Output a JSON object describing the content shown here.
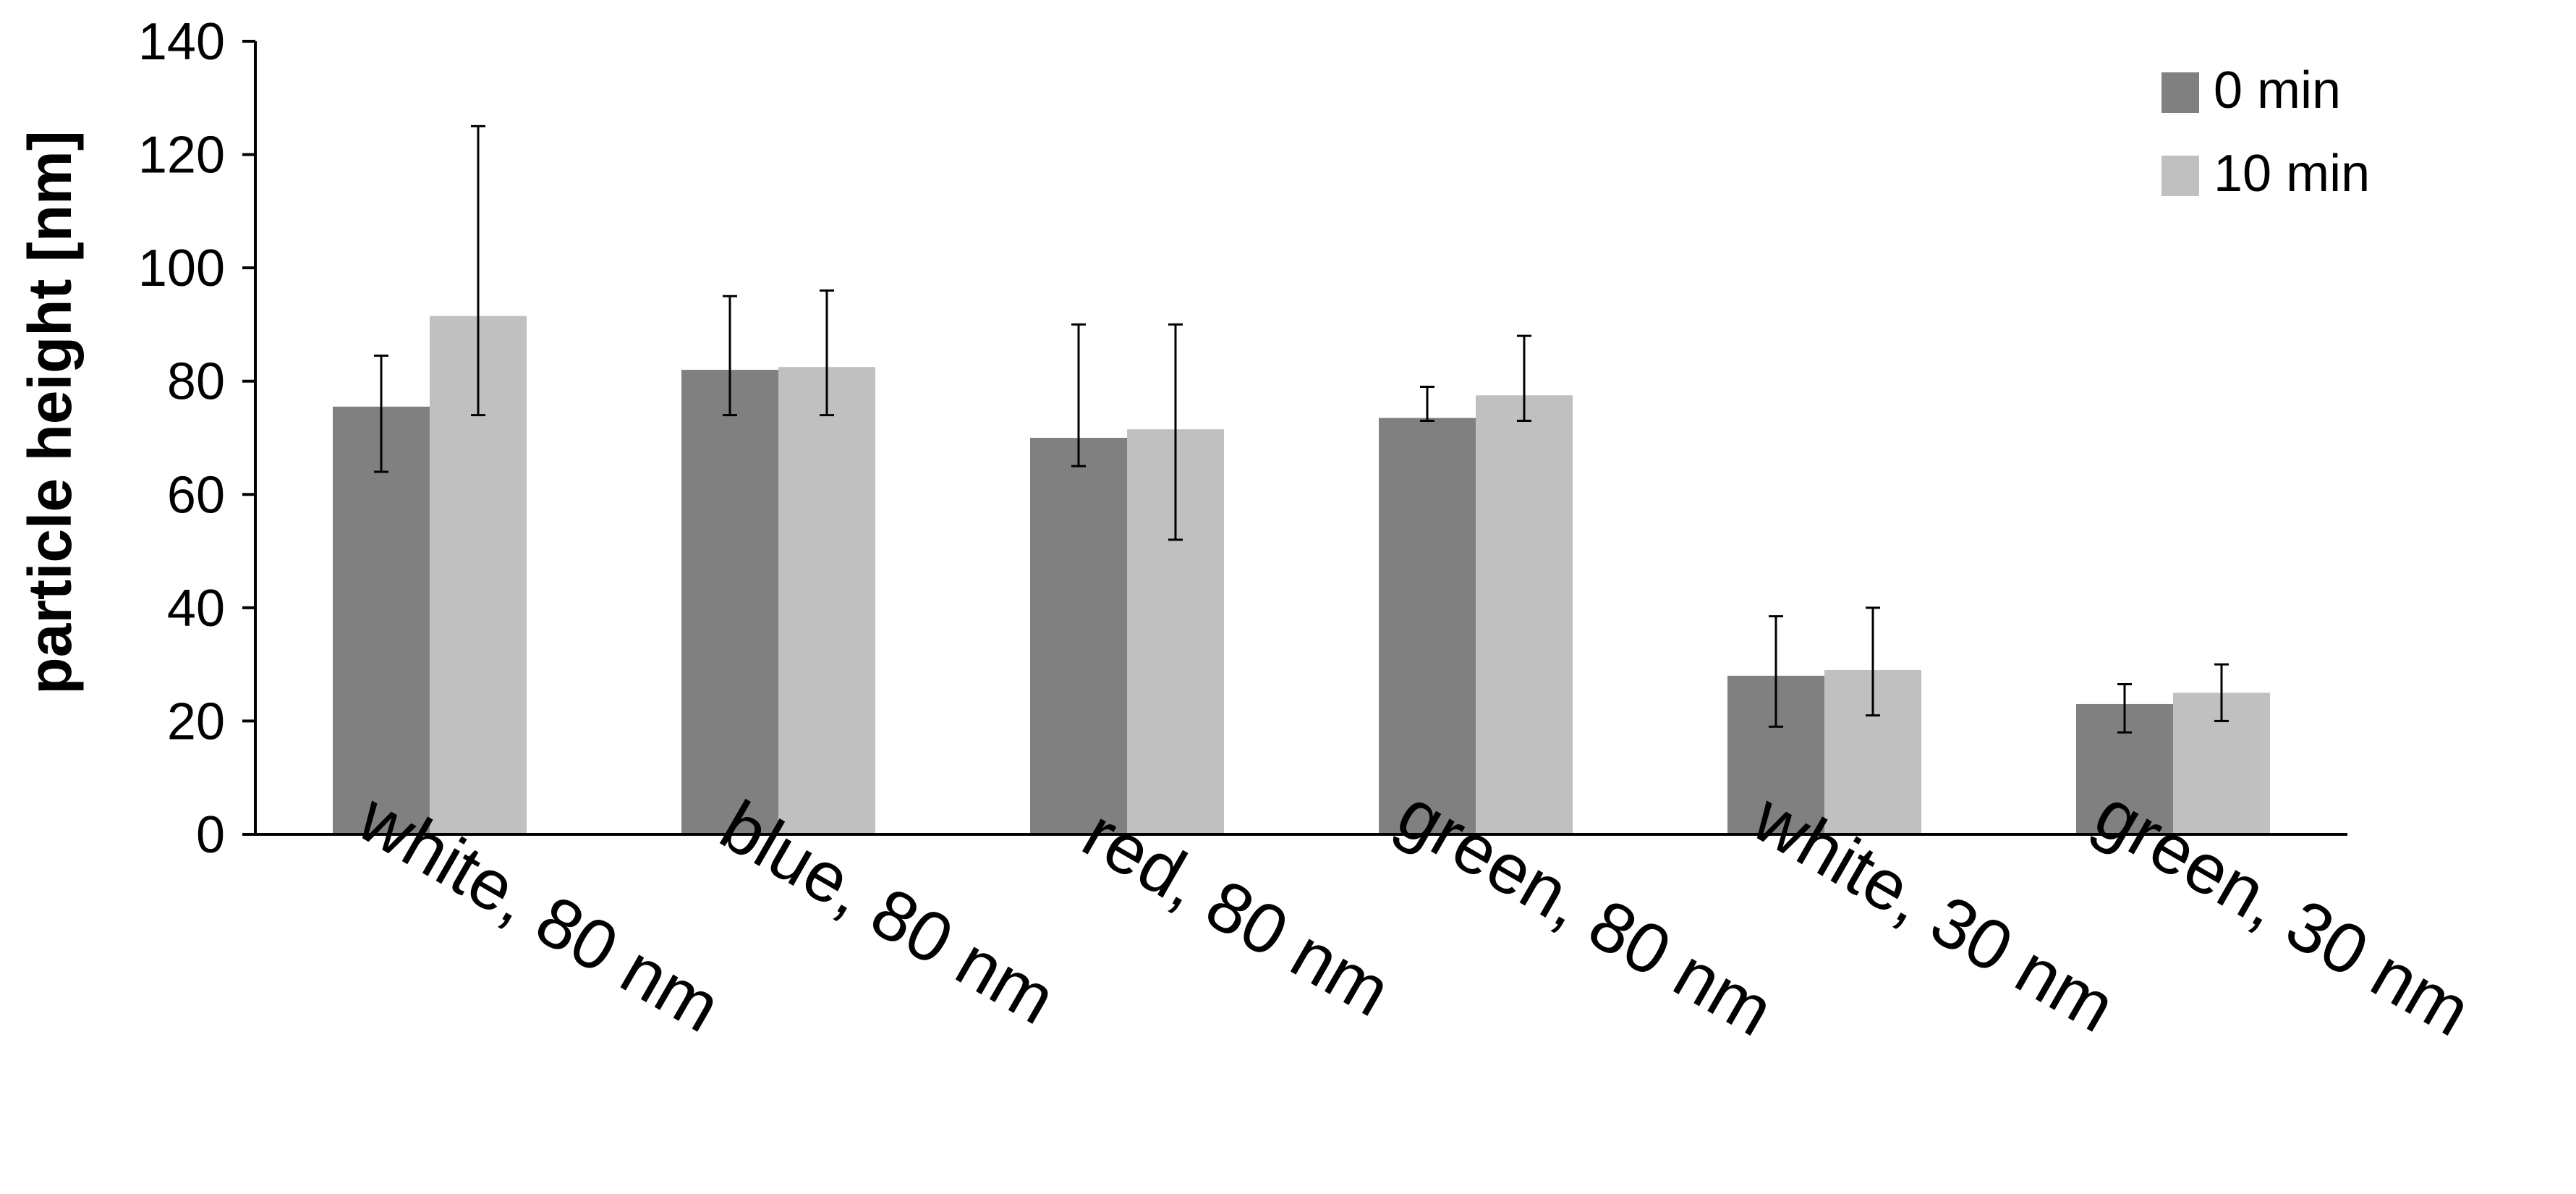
{
  "chart_data": {
    "type": "bar",
    "title": "",
    "xlabel": "",
    "ylabel": "particle height [nm]",
    "ylim": [
      0,
      140
    ],
    "yticks": [
      0,
      20,
      40,
      60,
      80,
      100,
      120,
      140
    ],
    "ytick_labels": [
      "0",
      "20",
      "40",
      "60",
      "80",
      "100",
      "120",
      "140"
    ],
    "grid": false,
    "legend_position": "top-right",
    "categories": [
      "white, 80 nm",
      "blue, 80 nm",
      "red, 80 nm",
      "green, 80 nm",
      "white, 30 nm",
      "green, 30 nm"
    ],
    "series": [
      {
        "name": "0 min",
        "color": "#808080",
        "values": [
          75.5,
          82,
          70,
          73.5,
          28,
          23
        ],
        "error_low": [
          64,
          74,
          65,
          73,
          19,
          18
        ],
        "error_high": [
          84.5,
          95,
          90,
          79,
          38.5,
          26.5
        ]
      },
      {
        "name": "10 min",
        "color": "#c0c0c0",
        "values": [
          91.5,
          82.5,
          71.5,
          77.5,
          29,
          25
        ],
        "error_low": [
          74,
          74,
          52,
          73,
          21,
          20
        ],
        "error_high": [
          125,
          96,
          90,
          88,
          40,
          30
        ]
      }
    ]
  }
}
